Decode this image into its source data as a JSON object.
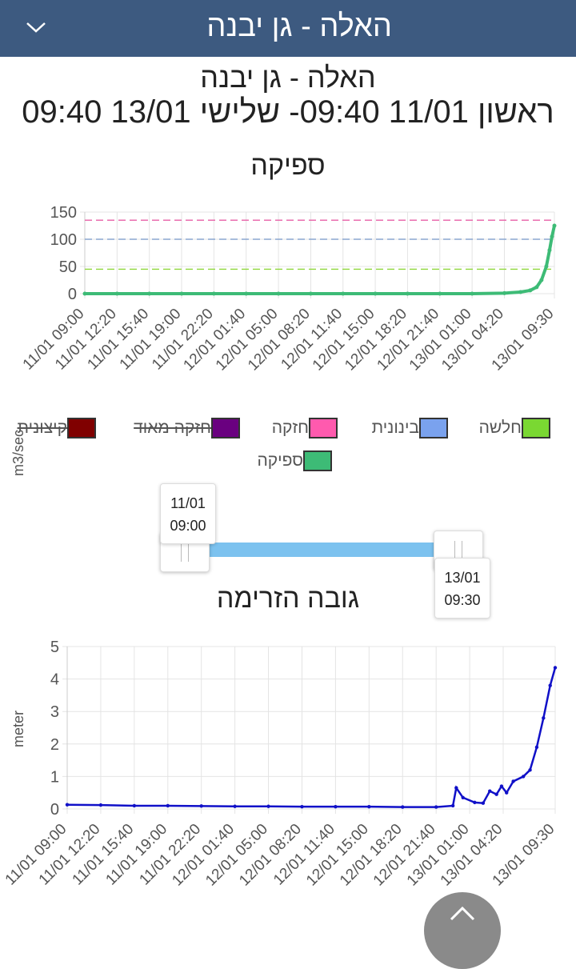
{
  "topbar": {
    "title": "האלה - גן יבנה",
    "menu_icon": "chevron-down-icon"
  },
  "header": {
    "station": "האלה - גן יבנה",
    "range": "ראשון 11/01 09:40- שלישי 13/01 09:40"
  },
  "flow_chart": {
    "title": "ספיקה",
    "ylabel": "m3/sec",
    "yticks": [
      "150",
      "100",
      "50",
      "0"
    ],
    "xticks": [
      "11/01 09:00",
      "11/01 12:20",
      "11/01 15:40",
      "11/01 19:00",
      "11/01 22:20",
      "12/01 01:40",
      "12/01 05:00",
      "12/01 08:20",
      "12/01 11:40",
      "12/01 15:00",
      "12/01 18:20",
      "12/01 21:40",
      "13/01 01:00",
      "13/01 04:20",
      "13/01 09:30"
    ]
  },
  "legend": [
    {
      "label": "קיצונית",
      "color": "#800000",
      "hidden": true
    },
    {
      "label": "חזקה מאוד",
      "color": "#6a0080",
      "hidden": true
    },
    {
      "label": "חזקה",
      "color": "#ff5aae",
      "hidden": false
    },
    {
      "label": "בינונית",
      "color": "#7aa2ee",
      "hidden": false
    },
    {
      "label": "חלשה",
      "color": "#7ad832",
      "hidden": false
    },
    {
      "label": "ספיקה",
      "color": "#3dbb76",
      "hidden": false
    }
  ],
  "slider": {
    "start_date": "11/01",
    "start_time": "09:00",
    "end_date": "13/01",
    "end_time": "09:30"
  },
  "level_chart": {
    "title": "גובה הזרימה",
    "ylabel": "meter",
    "yticks": [
      "5",
      "4",
      "3",
      "2",
      "1",
      "0"
    ],
    "xticks": [
      "11/01 09:00",
      "11/01 12:20",
      "11/01 15:40",
      "11/01 19:00",
      "11/01 22:20",
      "12/01 01:40",
      "12/01 05:00",
      "12/01 08:20",
      "12/01 11:40",
      "12/01 15:00",
      "12/01 18:20",
      "12/01 21:40",
      "13/01 01:00",
      "13/01 04:20",
      "13/01 09:30"
    ]
  },
  "chart_data": [
    {
      "type": "line",
      "title": "ספיקה",
      "ylabel": "m3/sec",
      "ylim": [
        0,
        150
      ],
      "grid": true,
      "x": [
        "11/01 09:00",
        "11/01 12:20",
        "11/01 15:40",
        "11/01 19:00",
        "11/01 22:20",
        "12/01 01:40",
        "12/01 05:00",
        "12/01 08:20",
        "12/01 11:40",
        "12/01 15:00",
        "12/01 18:20",
        "12/01 21:40",
        "13/01 01:00",
        "13/01 04:20",
        "13/01 06:00",
        "13/01 07:00",
        "13/01 07:40",
        "13/01 08:10",
        "13/01 08:40",
        "13/01 09:00",
        "13/01 09:15",
        "13/01 09:30"
      ],
      "series": [
        {
          "name": "ספיקה",
          "color": "#3dbb76",
          "values": [
            0,
            0,
            0,
            0,
            0,
            0,
            0,
            0,
            0,
            0,
            0,
            0,
            0,
            1,
            3,
            6,
            12,
            25,
            50,
            80,
            105,
            125
          ]
        }
      ],
      "thresholds": [
        {
          "name": "חזקה",
          "value": 135,
          "color": "#e75fa6"
        },
        {
          "name": "בינונית",
          "value": 100,
          "color": "#8aa6d0"
        },
        {
          "name": "חלשה",
          "value": 45,
          "color": "#8ed63a"
        }
      ]
    },
    {
      "type": "line",
      "title": "גובה הזרימה",
      "ylabel": "meter",
      "ylim": [
        0,
        5
      ],
      "grid": true,
      "x": [
        "11/01 09:00",
        "11/01 12:20",
        "11/01 15:40",
        "11/01 19:00",
        "11/01 22:20",
        "12/01 01:40",
        "12/01 05:00",
        "12/01 08:20",
        "12/01 11:40",
        "12/01 15:00",
        "12/01 18:20",
        "12/01 21:40",
        "12/01 23:20",
        "12/01 23:40",
        "13/01 00:20",
        "13/01 01:30",
        "13/01 02:20",
        "13/01 03:00",
        "13/01 03:40",
        "13/01 04:10",
        "13/01 04:40",
        "13/01 05:20",
        "13/01 06:20",
        "13/01 07:00",
        "13/01 07:40",
        "13/01 08:20",
        "13/01 09:00",
        "13/01 09:30"
      ],
      "series": [
        {
          "name": "",
          "color": "#1010c8",
          "values": [
            0.13,
            0.12,
            0.1,
            0.1,
            0.09,
            0.08,
            0.08,
            0.07,
            0.07,
            0.07,
            0.06,
            0.06,
            0.1,
            0.65,
            0.35,
            0.2,
            0.18,
            0.55,
            0.45,
            0.7,
            0.5,
            0.85,
            1.0,
            1.2,
            1.9,
            2.8,
            3.8,
            4.35
          ]
        }
      ]
    }
  ]
}
